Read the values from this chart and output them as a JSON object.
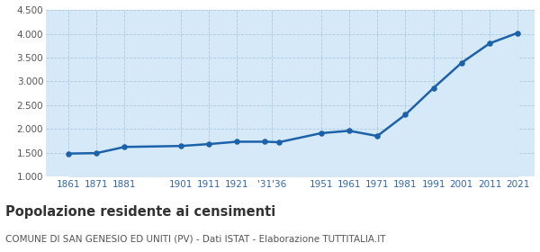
{
  "years": [
    1861,
    1871,
    1881,
    1901,
    1911,
    1921,
    1931,
    1936,
    1951,
    1961,
    1971,
    1981,
    1991,
    2001,
    2011,
    2021
  ],
  "population": [
    1480,
    1490,
    1620,
    1640,
    1680,
    1730,
    1730,
    1720,
    1910,
    1960,
    1850,
    2300,
    2860,
    3390,
    3800,
    4020
  ],
  "x_tick_labels": [
    "1861",
    "1871",
    "1881",
    "1901",
    "1911",
    "1921",
    "'31'36",
    "1951",
    "1961",
    "1971",
    "1981",
    "1991",
    "2001",
    "2011",
    "2021"
  ],
  "x_tick_positions": [
    1861,
    1871,
    1881,
    1901,
    1911,
    1921,
    1933.5,
    1951,
    1961,
    1971,
    1981,
    1991,
    2001,
    2011,
    2021
  ],
  "ylim": [
    1000,
    4500
  ],
  "yticks": [
    1000,
    1500,
    2000,
    2500,
    3000,
    3500,
    4000,
    4500
  ],
  "line_color": "#1c62aa",
  "fill_color": "#d6e9f8",
  "marker_color": "#1c62aa",
  "bg_color": "#ffffff",
  "grid_color": "#a8c4dc",
  "title": "Popolazione residente ai censimenti",
  "subtitle": "COMUNE DI SAN GENESIO ED UNITI (PV) - Dati ISTAT - Elaborazione TUTTITALIA.IT",
  "title_fontsize": 10.5,
  "subtitle_fontsize": 7.5,
  "xlim_left": 1853,
  "xlim_right": 2027
}
